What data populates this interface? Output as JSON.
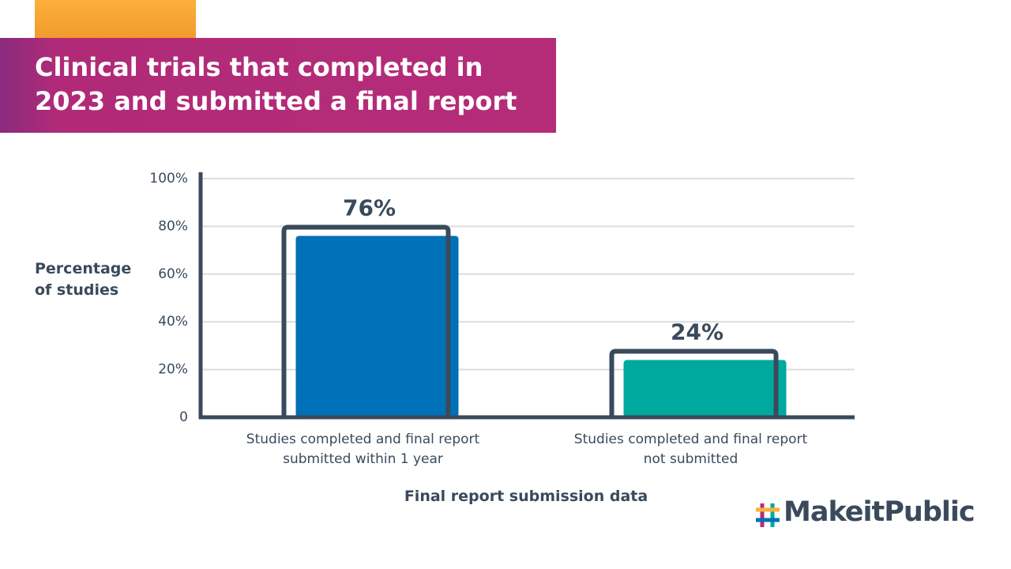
{
  "chart_data": {
    "type": "bar",
    "title": "Clinical trials that completed in 2023 and submitted a final report",
    "y_label": "Percentage of studies",
    "x_label": "Final report submission data",
    "categories": [
      "Studies completed and final report submitted within 1 year",
      "Studies completed and final report not submitted"
    ],
    "values": [
      76,
      24
    ],
    "value_labels": [
      "76%",
      "24%"
    ],
    "colors": [
      "#0070b8",
      "#00a99d"
    ],
    "ylim": [
      0,
      100
    ],
    "yticks": [
      0,
      {
        "value": 20,
        "label": "20%"
      },
      {
        "value": 40,
        "label": "40%"
      },
      {
        "value": 60,
        "label": "60%"
      },
      {
        "value": 80,
        "label": "80%"
      },
      {
        "value": 100,
        "label": "100%"
      }
    ],
    "grid": true
  },
  "logo": "MakeitPublic"
}
